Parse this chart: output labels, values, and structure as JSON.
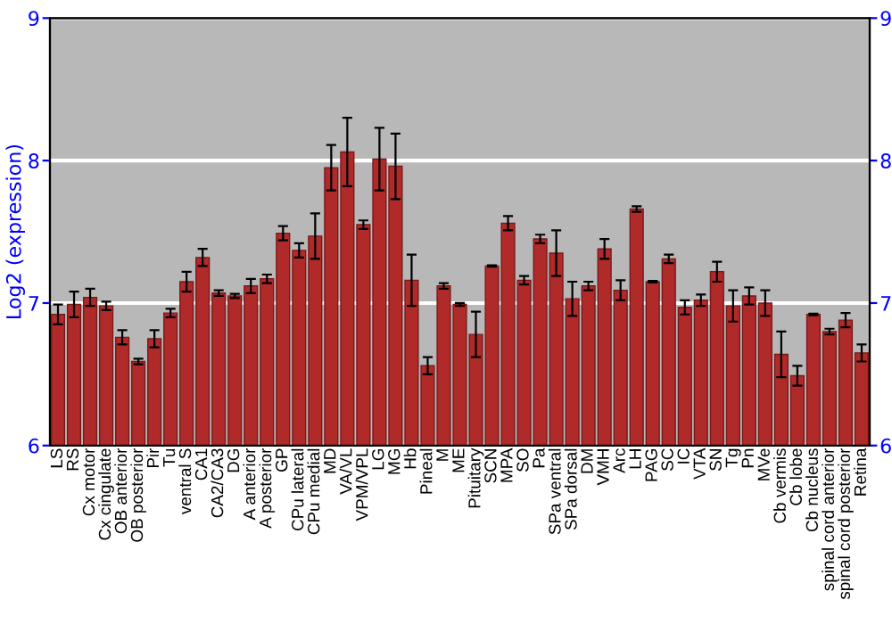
{
  "chart_data": {
    "type": "bar",
    "ylabel": "Log2 (expression)",
    "categories": [
      "LS",
      "RS",
      "Cx motor",
      "Cx cingulate",
      "OB anterior",
      "OB posterior",
      "Pir",
      "Tu",
      "ventral S",
      "CA1",
      "CA2/CA3",
      "DG",
      "A anterior",
      "A posterior",
      "GP",
      "CPu lateral",
      "CPu medial",
      "MD",
      "VA/VL",
      "VPM/VPL",
      "LG",
      "MG",
      "Hb",
      "Pineal",
      "M",
      "ME",
      "Pituitary",
      "SCN",
      "MPA",
      "SO",
      "Pa",
      "SPa ventral",
      "SPa dorsal",
      "DM",
      "VMH",
      "Arc",
      "LH",
      "PAG",
      "SC",
      "IC",
      "VTA",
      "SN",
      "Tg",
      "Pn",
      "MVe",
      "Cb vermis",
      "Cb lobe",
      "Cb nucleus",
      "spinal cord anterior",
      "spinal cord posterior",
      "Retina"
    ],
    "values": [
      6.92,
      6.99,
      7.04,
      6.98,
      6.76,
      6.59,
      6.75,
      6.93,
      7.15,
      7.32,
      7.07,
      7.05,
      7.12,
      7.17,
      7.49,
      7.37,
      7.47,
      7.95,
      8.06,
      7.55,
      8.01,
      7.96,
      7.16,
      6.56,
      7.12,
      6.99,
      6.78,
      7.26,
      7.56,
      7.16,
      7.45,
      7.35,
      7.03,
      7.12,
      7.38,
      7.09,
      7.66,
      7.15,
      7.31,
      6.97,
      7.02,
      7.22,
      6.98,
      7.05,
      7.0,
      6.64,
      6.49,
      6.92,
      6.8,
      6.88,
      6.65
    ],
    "errors": [
      0.07,
      0.09,
      0.06,
      0.03,
      0.05,
      0.02,
      0.06,
      0.03,
      0.07,
      0.06,
      0.02,
      0.015,
      0.05,
      0.03,
      0.05,
      0.05,
      0.16,
      0.16,
      0.24,
      0.03,
      0.22,
      0.23,
      0.18,
      0.06,
      0.02,
      0.01,
      0.16,
      0.005,
      0.05,
      0.03,
      0.03,
      0.16,
      0.12,
      0.03,
      0.07,
      0.07,
      0.02,
      0.005,
      0.03,
      0.05,
      0.04,
      0.07,
      0.11,
      0.06,
      0.09,
      0.16,
      0.07,
      0.005,
      0.02,
      0.05,
      0.06
    ],
    "color": "#b02a2a",
    "ylim": [
      6,
      9
    ],
    "yticks": [
      6,
      7,
      8,
      9
    ],
    "y2lim": [
      6,
      9
    ],
    "y2ticks": [
      6,
      7,
      8,
      9
    ],
    "grid": "y"
  }
}
